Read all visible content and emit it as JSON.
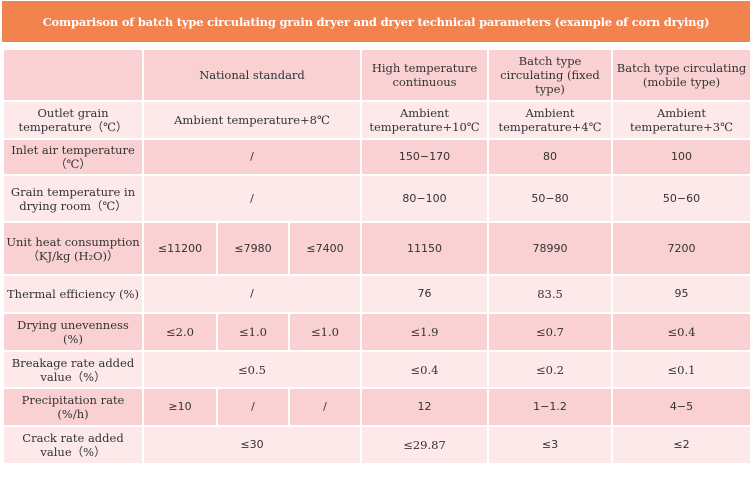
{
  "title": "Comparison of batch type circulating grain dryer and dryer technical parameters (example of corn drying)",
  "header": {
    "national_standard": "National standard",
    "high_temp": "High temperature continuous",
    "batch_fixed": "Batch type circulating (fixed type)",
    "batch_mobile": "Batch type circulating (mobile type)"
  },
  "rows": {
    "outlet": {
      "label": "Outlet grain temperature（℃）",
      "national": "Ambient temperature+8℃",
      "high": "Ambient temperature+10℃",
      "fixed": "Ambient temperature+4℃",
      "mobile": "Ambient temperature+3℃"
    },
    "inlet": {
      "label": "Inlet air temperature（℃）",
      "national": "/",
      "high": "150−170",
      "fixed": "80",
      "mobile": "100"
    },
    "grain": {
      "label": "Grain temperature in drying room（℃）",
      "national": "/",
      "high": "80−100",
      "fixed": "50−80",
      "mobile": "50−60"
    },
    "heat": {
      "label": "Unit heat consumption （KJ/kg (H₂O)）",
      "n1": "≤11200",
      "n2": "≤7980",
      "n3": "≤7400",
      "high": "11150",
      "fixed": "78990",
      "mobile": "7200"
    },
    "thermal": {
      "label": "Thermal efficiency (%)",
      "national": "/",
      "high": "76",
      "fixed": "83.5",
      "mobile": "95"
    },
    "uneven": {
      "label": "Drying unevenness (%)",
      "n1": "≤2.0",
      "n2": "≤1.0",
      "n3": "≤1.0",
      "high": "≤1.9",
      "fixed": "≤0.7",
      "mobile": "≤0.4"
    },
    "breakage": {
      "label": "Breakage rate added value（%）",
      "national": "≤0.5",
      "high": "≤0.4",
      "fixed": "≤0.2",
      "mobile": "≤0.1"
    },
    "precip": {
      "label": "Precipitation rate (%/h)",
      "n1": "≥10",
      "n2": "/",
      "n3": "/",
      "high": "12",
      "fixed": "1−1.2",
      "mobile": "4−5"
    },
    "crack": {
      "label": "Crack rate added value（%）",
      "national": "≤30",
      "high": "≤29.87",
      "fixed": "≤3",
      "mobile": "≤2"
    }
  }
}
